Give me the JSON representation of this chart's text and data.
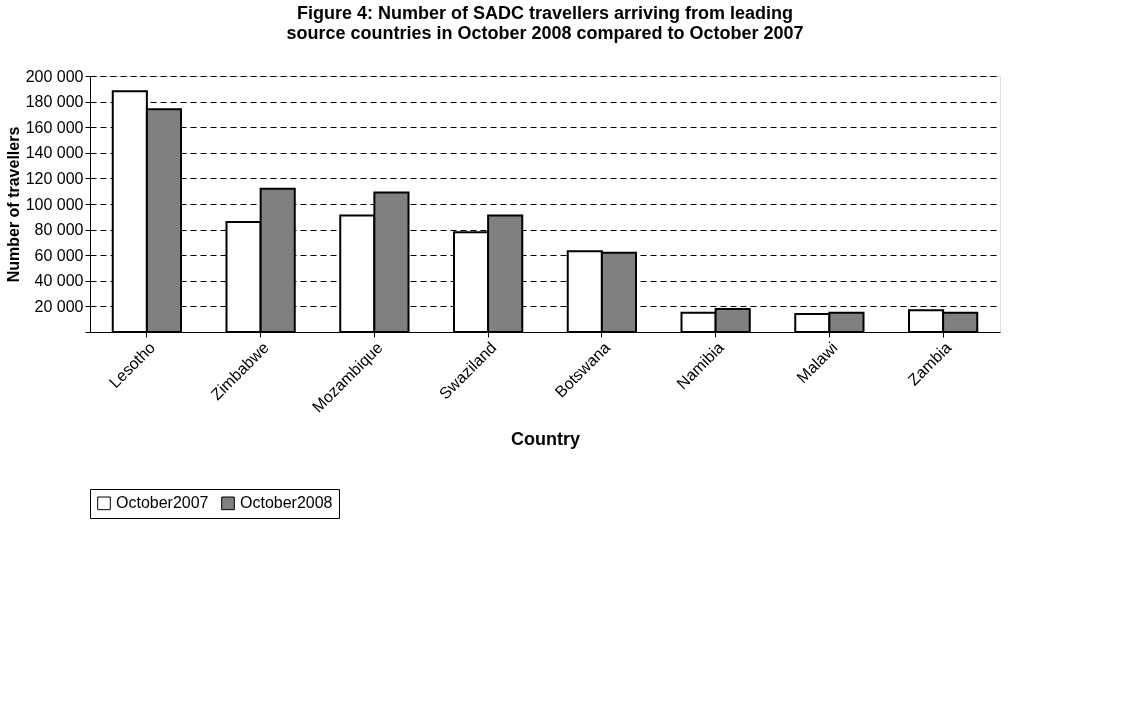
{
  "chart_data": {
    "type": "bar",
    "title": "Figure 4: Number of SADC travellers arriving from leading source countries in October 2008 compared to October 2007",
    "xlabel": "Country",
    "ylabel": "Number of travellers",
    "categories": [
      "Lesotho",
      "Zimbabwe",
      "Mozambique",
      "Swaziland",
      "Botswana",
      "Namibia",
      "Malawi",
      "Zambia"
    ],
    "series": [
      {
        "name": "October2007",
        "color": "#ffffff",
        "values": [
          188000,
          86000,
          91000,
          78000,
          63000,
          15000,
          14000,
          17000
        ]
      },
      {
        "name": "October2008",
        "color": "#808080",
        "values": [
          174000,
          112000,
          109000,
          91000,
          62000,
          18000,
          15000,
          15000
        ]
      }
    ],
    "ylim": [
      0,
      200000
    ],
    "yticks": [
      {
        "value": 0,
        "label": null
      },
      {
        "value": 20000,
        "label": "20 000"
      },
      {
        "value": 40000,
        "label": "40 000"
      },
      {
        "value": 60000,
        "label": "60 000"
      },
      {
        "value": 80000,
        "label": "80 000"
      },
      {
        "value": 100000,
        "label": "100 000"
      },
      {
        "value": 120000,
        "label": "120 000"
      },
      {
        "value": 140000,
        "label": "140 000"
      },
      {
        "value": 160000,
        "label": "160 000"
      },
      {
        "value": 180000,
        "label": "180 000"
      },
      {
        "value": 200000,
        "label": "200 000"
      }
    ],
    "grid": "y",
    "legend": "bottom"
  }
}
